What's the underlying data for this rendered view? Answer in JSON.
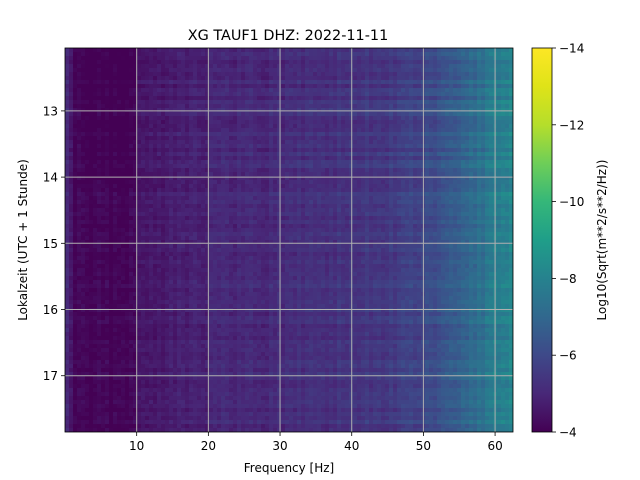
{
  "chart_data": {
    "type": "heatmap",
    "title": "XG TAUF1  DHZ: 2022-11-11",
    "xlabel": "Frequency [Hz]",
    "ylabel": "Lokalzeit (UTC + 1 Stunde)",
    "colorbar_label": "Log10(Sqrt(m**2/s**2/Hz))",
    "colormap": "viridis",
    "xlim": [
      0,
      62.5
    ],
    "ylim": [
      17.85,
      12.05
    ],
    "y_inverted": true,
    "grid": true,
    "clim": [
      -14,
      -4
    ],
    "x_ticks": [
      {
        "value": 10,
        "label": "10"
      },
      {
        "value": 20,
        "label": "20"
      },
      {
        "value": 30,
        "label": "30"
      },
      {
        "value": 40,
        "label": "40"
      },
      {
        "value": 50,
        "label": "50"
      },
      {
        "value": 60,
        "label": "60"
      }
    ],
    "y_ticks": [
      {
        "value": 13,
        "label": "13"
      },
      {
        "value": 14,
        "label": "14"
      },
      {
        "value": 15,
        "label": "15"
      },
      {
        "value": 16,
        "label": "16"
      },
      {
        "value": 17,
        "label": "17"
      }
    ],
    "colorbar_ticks": [
      {
        "value": -4,
        "label": "−4"
      },
      {
        "value": -6,
        "label": "−6"
      },
      {
        "value": -8,
        "label": "−8"
      },
      {
        "value": -10,
        "label": "−10"
      },
      {
        "value": -12,
        "label": "−12"
      },
      {
        "value": -14,
        "label": "−14"
      }
    ],
    "frequency_profile": {
      "x": [
        0.5,
        1,
        2,
        5,
        8,
        10,
        12,
        15,
        18,
        20,
        25,
        30,
        35,
        40,
        45,
        48,
        50,
        53,
        55,
        58,
        60,
        62.5
      ],
      "y": [
        -5.0,
        -4.2,
        -4.1,
        -4.05,
        -4.1,
        -4.4,
        -4.6,
        -4.8,
        -4.85,
        -4.9,
        -5.0,
        -5.1,
        -5.25,
        -5.35,
        -5.5,
        -5.7,
        -5.9,
        -6.3,
        -6.7,
        -7.3,
        -7.8,
        -8.0
      ]
    }
  }
}
